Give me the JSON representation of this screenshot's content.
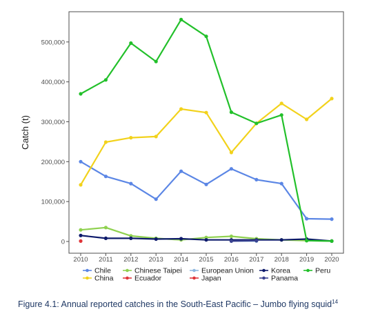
{
  "chart_data": {
    "type": "line",
    "title": "",
    "xlabel": "",
    "ylabel": "Catch (t)",
    "x": [
      2010,
      2011,
      2012,
      2013,
      2014,
      2015,
      2016,
      2017,
      2018,
      2019,
      2020
    ],
    "xlim": [
      2010,
      2020
    ],
    "ylim": [
      -18000,
      585000
    ],
    "yticks": [
      0,
      100000,
      200000,
      300000,
      400000,
      500000
    ],
    "yticklabels": [
      "0",
      "100,000",
      "200,000",
      "300,000",
      "400,000",
      "500,000"
    ],
    "grid": false,
    "legend_position": "bottom",
    "series": [
      {
        "name": "Chile",
        "color": "#5b86e5",
        "values": [
          200000,
          163000,
          145000,
          106000,
          176000,
          143000,
          182000,
          155000,
          145000,
          57000,
          56000
        ]
      },
      {
        "name": "China",
        "color": "#f2d21b",
        "values": [
          142000,
          249000,
          260000,
          263000,
          332000,
          323000,
          223000,
          296000,
          346000,
          306000,
          358000
        ]
      },
      {
        "name": "Chinese Taipei",
        "color": "#8fd14f",
        "values": [
          29000,
          35000,
          14000,
          8000,
          4000,
          10000,
          13000,
          7000,
          4000,
          2000,
          1000
        ]
      },
      {
        "name": "Ecuador",
        "color": "#e0363a",
        "values": [
          1000,
          null,
          null,
          null,
          null,
          null,
          null,
          null,
          null,
          null,
          null
        ]
      },
      {
        "name": "European Union",
        "color": "#8db7e0",
        "values": [
          null,
          null,
          null,
          null,
          null,
          null,
          1000,
          1000,
          null,
          null,
          null
        ]
      },
      {
        "name": "Japan",
        "color": "#e0363a",
        "values": [
          null,
          null,
          null,
          null,
          null,
          null,
          null,
          null,
          null,
          null,
          null
        ]
      },
      {
        "name": "Korea",
        "color": "#0d1a6b",
        "values": [
          15000,
          8000,
          8000,
          6000,
          7000,
          4000,
          4000,
          4000,
          4000,
          6000,
          1000
        ]
      },
      {
        "name": "Panama",
        "color": "#3a4290",
        "values": [
          null,
          null,
          null,
          null,
          null,
          null,
          1000,
          2000,
          null,
          null,
          null
        ]
      },
      {
        "name": "Peru",
        "color": "#22c02a",
        "values": [
          370000,
          405000,
          497000,
          451000,
          556000,
          514000,
          324000,
          296000,
          317000,
          2000,
          1000
        ]
      }
    ]
  },
  "caption": {
    "text": "Figure 4.1: Annual reported catches in the South-East Pacific – Jumbo flying squid",
    "footnote": "14"
  }
}
